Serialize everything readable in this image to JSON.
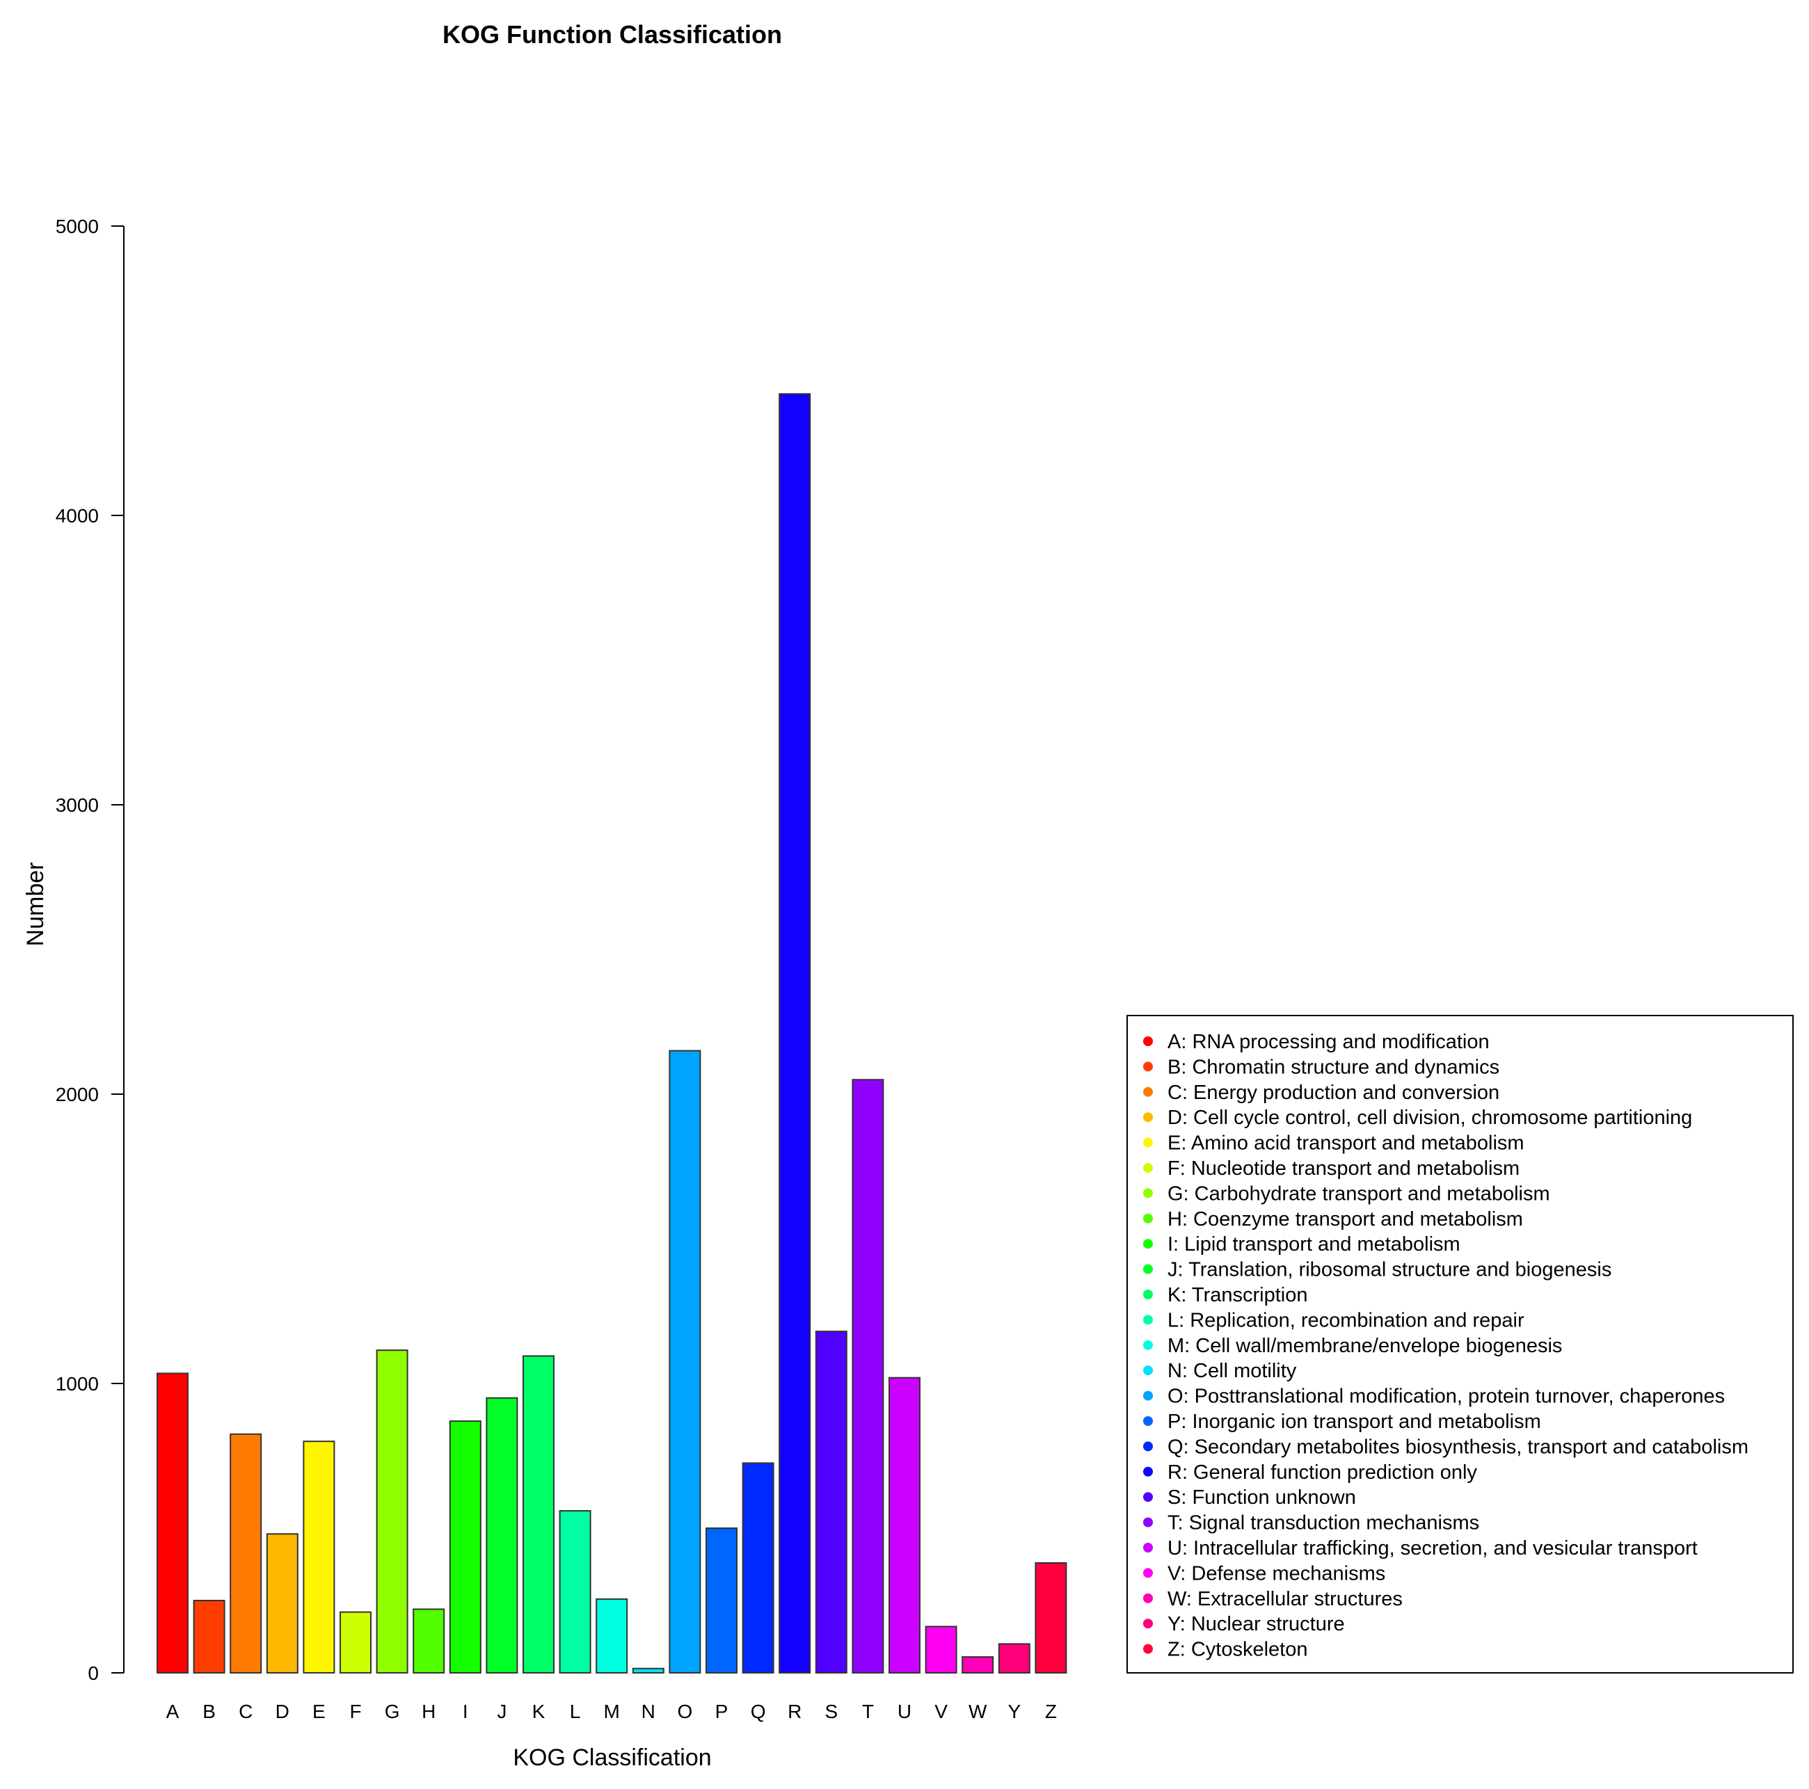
{
  "chart_data": {
    "type": "bar",
    "title": "KOG Function Classification",
    "xlabel": "KOG Classification",
    "ylabel": "Number",
    "ylim": [
      0,
      5000
    ],
    "yticks": [
      "0",
      "1000",
      "2000",
      "3000",
      "4000",
      "5000"
    ],
    "ytick_values": [
      0,
      1000,
      2000,
      3000,
      4000,
      5000
    ],
    "categories": [
      "A",
      "B",
      "C",
      "D",
      "E",
      "F",
      "G",
      "H",
      "I",
      "J",
      "K",
      "L",
      "M",
      "N",
      "O",
      "P",
      "Q",
      "R",
      "S",
      "T",
      "U",
      "V",
      "W",
      "Y",
      "Z"
    ],
    "values": [
      1035,
      250,
      825,
      480,
      800,
      210,
      1115,
      220,
      870,
      950,
      1095,
      560,
      255,
      15,
      2150,
      500,
      725,
      4420,
      1180,
      2050,
      1020,
      160,
      55,
      100,
      380
    ],
    "colors": [
      "#FF0000",
      "#FF3D00",
      "#FF7A00",
      "#FFB800",
      "#FFF500",
      "#CCFF00",
      "#8FFF00",
      "#52FF00",
      "#14FF00",
      "#00FF29",
      "#00FF66",
      "#00FFA3",
      "#00FFE0",
      "#00E0FF",
      "#00A3FF",
      "#0066FF",
      "#0029FF",
      "#1400FF",
      "#5200FF",
      "#8F00FF",
      "#CC00FF",
      "#FF00F5",
      "#FF00B8",
      "#FF007A",
      "#FF003D"
    ],
    "legend_position": "right",
    "legend": [
      "A:  RNA processing and modification",
      "B:  Chromatin structure and dynamics",
      "C:  Energy production and conversion",
      "D:  Cell cycle control, cell division, chromosome partitioning",
      "E:  Amino acid transport and metabolism",
      "F:  Nucleotide transport and metabolism",
      "G:  Carbohydrate transport and metabolism",
      "H:  Coenzyme transport and metabolism",
      "I:  Lipid transport and metabolism",
      "J:  Translation, ribosomal structure and biogenesis",
      "K:  Transcription",
      "L:  Replication, recombination and repair",
      "M:  Cell wall/membrane/envelope biogenesis",
      "N:  Cell motility",
      "O:  Posttranslational modification, protein turnover, chaperones",
      "P:  Inorganic ion transport and metabolism",
      "Q:  Secondary metabolites biosynthesis, transport and catabolism",
      "R:  General function prediction only",
      "S:  Function unknown",
      "T:  Signal transduction mechanisms",
      "U:  Intracellular trafficking, secretion, and vesicular transport",
      "V:  Defense mechanisms",
      "W:  Extracellular structures",
      "Y:  Nuclear structure",
      "Z:  Cytoskeleton"
    ]
  }
}
